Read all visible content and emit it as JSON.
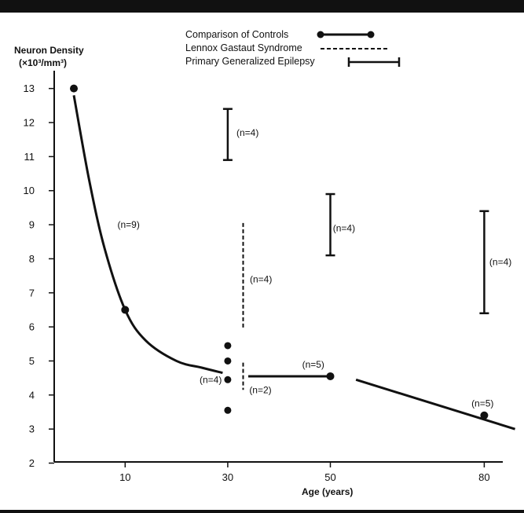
{
  "chart_data": {
    "type": "line",
    "ylabel_line1": "Neuron Density",
    "ylabel_line2": "(×10³/mm³)",
    "xlabel": "Age (years)",
    "x_ticks": [
      10,
      30,
      50,
      80
    ],
    "y_ticks": [
      2,
      3,
      4,
      5,
      6,
      7,
      8,
      9,
      10,
      11,
      12,
      13
    ],
    "ylim": [
      2,
      13
    ],
    "legend": {
      "controls": "Comparison of Controls",
      "lgs": "Lennox Gastaut Syndrome",
      "pge": "Primary Generalized Epilepsy"
    },
    "controls_points": [
      {
        "x": 0,
        "y": 13.0
      },
      {
        "x": 10,
        "y": 6.5
      },
      {
        "x": 50,
        "y": 4.55
      },
      {
        "x": 80,
        "y": 3.4
      }
    ],
    "controls_curve": [
      {
        "x": 0,
        "y": 12.8
      },
      {
        "x": 3,
        "y": 10.3
      },
      {
        "x": 6,
        "y": 8.3
      },
      {
        "x": 10,
        "y": 6.5
      },
      {
        "x": 14,
        "y": 5.6
      },
      {
        "x": 20,
        "y": 5.0
      },
      {
        "x": 25,
        "y": 4.8
      },
      {
        "x": 29,
        "y": 4.65
      }
    ],
    "controls_segments": [
      {
        "x1": 34,
        "y1": 4.55,
        "x2": 50,
        "y2": 4.55
      },
      {
        "x1": 55,
        "y1": 4.45,
        "x2": 86,
        "y2": 3.0
      }
    ],
    "scatter_age30": [
      {
        "x": 30,
        "y": 5.45
      },
      {
        "x": 30,
        "y": 5.0
      },
      {
        "x": 30,
        "y": 4.45
      },
      {
        "x": 30,
        "y": 3.55
      }
    ],
    "lgs_ranges": [
      {
        "x": 33,
        "ymin": 5.95,
        "ymax": 9.05
      },
      {
        "x": 33,
        "ymin": 4.15,
        "ymax": 4.95
      }
    ],
    "pge_ranges": [
      {
        "x": 30,
        "ymin": 10.9,
        "ymax": 12.4
      },
      {
        "x": 50,
        "ymin": 8.1,
        "ymax": 9.9
      },
      {
        "x": 80,
        "ymin": 6.4,
        "ymax": 9.4
      }
    ],
    "annotations": [
      {
        "text": "(n=9)",
        "x": 8.5,
        "y": 9.0
      },
      {
        "text": "(n=4)",
        "x": 31.7,
        "y": 11.7
      },
      {
        "text": "(n=4)",
        "x": 34.3,
        "y": 7.4
      },
      {
        "text": "(n=4)",
        "x": 50.5,
        "y": 8.9
      },
      {
        "text": "(n=4)",
        "x": 81,
        "y": 7.9
      },
      {
        "text": "(n=4)",
        "x": 24.5,
        "y": 4.45
      },
      {
        "text": "(n=2)",
        "x": 34.2,
        "y": 4.15
      },
      {
        "text": "(n=5)",
        "x": 44.5,
        "y": 4.9
      },
      {
        "text": "(n=5)",
        "x": 77.5,
        "y": 3.75
      }
    ]
  }
}
